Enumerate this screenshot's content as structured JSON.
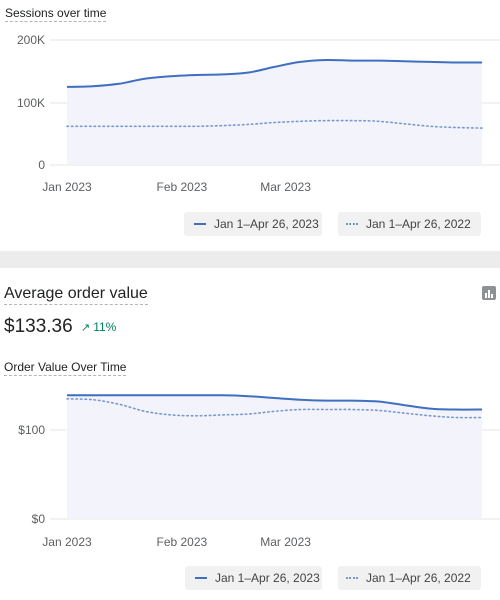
{
  "sessions_card": {
    "title": "Sessions over time",
    "legend": {
      "current": "Jan 1–Apr 26, 2023",
      "previous": "Jan 1–Apr 26, 2022"
    }
  },
  "aov_card": {
    "title": "Average order value",
    "value": "$133.36",
    "change": "11%",
    "change_direction": "up",
    "chart_title": "Order Value Over Time",
    "legend": {
      "current": "Jan 1–Apr 26, 2023",
      "previous": "Jan 1–Apr 26, 2022"
    },
    "icon": "bar-chart-icon"
  },
  "colors": {
    "current_series": "#3f6fbf",
    "previous_series": "#7a98cf",
    "positive_change": "#008060"
  },
  "chart_data": [
    {
      "type": "line",
      "title": "Sessions over time",
      "x": [
        "2023-01-01",
        "2023-01-08",
        "2023-01-15",
        "2023-01-22",
        "2023-01-29",
        "2023-02-05",
        "2023-02-12",
        "2023-02-19",
        "2023-02-26",
        "2023-03-05",
        "2023-03-12",
        "2023-03-19",
        "2023-03-26",
        "2023-04-02",
        "2023-04-09",
        "2023-04-16",
        "2023-04-23"
      ],
      "x_ticks": [
        "Jan 2023",
        "Feb 2023",
        "Mar 2023"
      ],
      "y_ticks": [
        "200K",
        "100K",
        "0"
      ],
      "ylim": [
        0,
        200000
      ],
      "grid": true,
      "legend": "bottom-right",
      "series": [
        {
          "name": "Jan 1–Apr 26, 2023",
          "style": "solid",
          "values": [
            125000,
            126000,
            130000,
            138000,
            142000,
            144000,
            145000,
            148000,
            157000,
            165000,
            168000,
            167000,
            167000,
            166000,
            165000,
            164000,
            164000
          ]
        },
        {
          "name": "Jan 1–Apr 26, 2022",
          "style": "dotted",
          "values": [
            62000,
            62000,
            62000,
            62000,
            62000,
            62000,
            63000,
            65000,
            68000,
            70000,
            71000,
            71000,
            70000,
            66000,
            62000,
            60000,
            59000
          ]
        }
      ]
    },
    {
      "type": "line",
      "title": "Order Value Over Time",
      "x": [
        "2023-01-01",
        "2023-01-08",
        "2023-01-15",
        "2023-01-22",
        "2023-01-29",
        "2023-02-05",
        "2023-02-12",
        "2023-02-19",
        "2023-02-26",
        "2023-03-05",
        "2023-03-12",
        "2023-03-19",
        "2023-03-26",
        "2023-04-02",
        "2023-04-09",
        "2023-04-16",
        "2023-04-23"
      ],
      "x_ticks": [
        "Jan 2023",
        "Feb 2023",
        "Mar 2023"
      ],
      "y_ticks": [
        "$100",
        "$0"
      ],
      "ylim": [
        0,
        100
      ],
      "grid": true,
      "legend": "bottom-right",
      "series": [
        {
          "name": "Jan 1–Apr 26, 2023",
          "style": "solid",
          "values": [
            139,
            139,
            139,
            139,
            139,
            139,
            139,
            138,
            136,
            134,
            133,
            133,
            132,
            128,
            124,
            123,
            123
          ]
        },
        {
          "name": "Jan 1–Apr 26, 2022",
          "style": "dotted",
          "values": [
            135,
            134,
            129,
            121,
            117,
            116,
            117,
            118,
            121,
            123,
            123,
            123,
            122,
            119,
            116,
            114,
            114
          ]
        }
      ]
    }
  ]
}
